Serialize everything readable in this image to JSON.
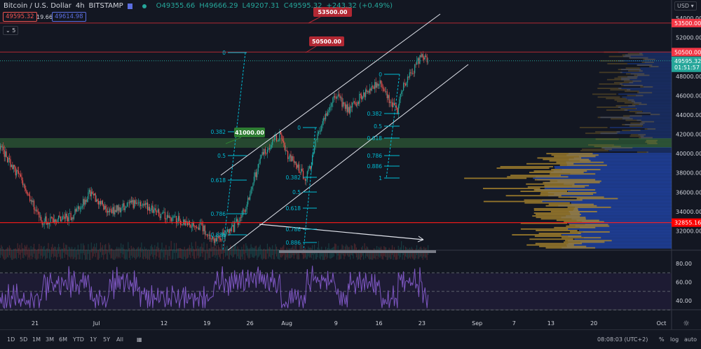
{
  "header": {
    "symbol": "Bitcoin / U.S. Dollar",
    "interval": "4h",
    "exchange": "BITSTAMP",
    "open": "O49355.66",
    "high": "H49666.29",
    "low": "L49207.31",
    "close": "C49595.32",
    "change": "+243.32 (+0.49%)",
    "bid": "49595.32",
    "spread": "19.66",
    "ask": "49614.98",
    "indicators_count": "5"
  },
  "currency": "USD",
  "price_axis": {
    "ticks": [
      "54000.00",
      "52000.00",
      "48000.00",
      "46000.00",
      "44000.00",
      "42000.00",
      "40000.00",
      "38000.00",
      "36000.00",
      "34000.00",
      "32000.00"
    ],
    "tags": {
      "r53500": "53500.00",
      "r50500": "50500.00",
      "last": "49595.32",
      "countdown": "01:51:57",
      "r32855": "32855.16"
    }
  },
  "rsi_axis": {
    "ticks": [
      "80.00",
      "60.00",
      "40.00"
    ]
  },
  "time_axis": {
    "ticks": [
      "21",
      "Jul",
      "12",
      "19",
      "26",
      "Aug",
      "9",
      "16",
      "23",
      "Sep",
      "7",
      "13",
      "20",
      "Oct"
    ]
  },
  "annotations": {
    "l53500": "53500.00",
    "l50500": "50500.00",
    "l41000": "41000.00"
  },
  "fib_left": [
    "0",
    "0.382",
    "0.5",
    "0.618",
    "0.786",
    "0.886"
  ],
  "fib_mid": [
    "0",
    "0.382",
    "0.5",
    "0.618",
    "0.786",
    "0.886"
  ],
  "fib_right": [
    "0",
    "0.382",
    "0.5",
    "0.618",
    "0.786",
    "0.886",
    "1"
  ],
  "bottom": {
    "ranges": [
      "1D",
      "5D",
      "1M",
      "3M",
      "6M",
      "YTD",
      "1Y",
      "5Y",
      "All"
    ],
    "time": "08:08:03 (UTC+2)",
    "pct": "%",
    "log": "log",
    "auto": "auto"
  },
  "colors": {
    "up": "#26a69a",
    "down": "#ef5350",
    "rsi": "#7e57c2",
    "fib": "#00bcd4"
  },
  "chart_data": {
    "type": "candlestick",
    "interval": "4h",
    "ylim": [
      30000,
      55000
    ],
    "rsi_ylim": [
      30,
      90
    ],
    "price_path": [
      [
        "2021-06-15",
        41000
      ],
      [
        "2021-06-19",
        37000
      ],
      [
        "2021-06-22",
        33000
      ],
      [
        "2021-06-27",
        33500
      ],
      [
        "2021-06-30",
        36000
      ],
      [
        "2021-07-03",
        34000
      ],
      [
        "2021-07-08",
        35000
      ],
      [
        "2021-07-12",
        33500
      ],
      [
        "2021-07-18",
        32500
      ],
      [
        "2021-07-20",
        31000
      ],
      [
        "2021-07-23",
        32000
      ],
      [
        "2021-07-25",
        34000
      ],
      [
        "2021-07-27",
        38000
      ],
      [
        "2021-07-28",
        40000
      ],
      [
        "2021-07-31",
        42000
      ],
      [
        "2021-08-01",
        40000
      ],
      [
        "2021-08-04",
        37500
      ],
      [
        "2021-08-05",
        39000
      ],
      [
        "2021-08-06",
        42000
      ],
      [
        "2021-08-08",
        45000
      ],
      [
        "2021-08-09",
        46000
      ],
      [
        "2021-08-11",
        44500
      ],
      [
        "2021-08-14",
        46500
      ],
      [
        "2021-08-16",
        47500
      ],
      [
        "2021-08-18",
        45000
      ],
      [
        "2021-08-19",
        44500
      ],
      [
        "2021-08-20",
        47000
      ],
      [
        "2021-08-22",
        49000
      ],
      [
        "2021-08-23",
        50300
      ],
      [
        "2021-08-24",
        49595.32
      ]
    ],
    "horizontal_levels": [
      53500,
      50500,
      32855.16
    ],
    "support_zone": [
      40600,
      41600
    ]
  }
}
